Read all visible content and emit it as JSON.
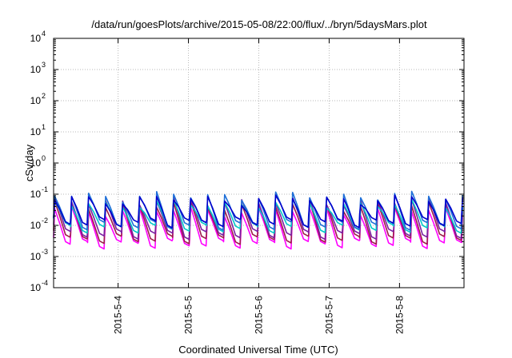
{
  "chart_data": {
    "type": "line",
    "title": "/data/run/goesPlots/archive/2015-05-08/22:00/flux/../bryn/5daysMars.plot",
    "xlabel": "Coordinated Universal Time (UTC)",
    "ylabel": "cSv/day",
    "yscale": "log",
    "ylim": [
      0.0001,
      10000
    ],
    "xlim": [
      "2015-05-03 02:00",
      "2015-05-08 22:00"
    ],
    "x_ticks": [
      "2015-5-4",
      "2015-5-5",
      "2015-5-6",
      "2015-5-7",
      "2015-5-8"
    ],
    "y_ticks": [
      {
        "base": "10",
        "exp": "-4"
      },
      {
        "base": "10",
        "exp": "-3"
      },
      {
        "base": "10",
        "exp": "-2"
      },
      {
        "base": "10",
        "exp": "-1"
      },
      {
        "base": "10",
        "exp": "0"
      },
      {
        "base": "10",
        "exp": "1"
      },
      {
        "base": "10",
        "exp": "2"
      },
      {
        "base": "10",
        "exp": "3"
      },
      {
        "base": "10",
        "exp": "4"
      }
    ],
    "grid": true,
    "pattern": {
      "period_hours": 5.8,
      "start": "2015-05-03 02:00",
      "end": "2015-05-08 22:00"
    },
    "series": [
      {
        "color": "#ff00ff",
        "peak": 0.03,
        "trough": 0.0025
      },
      {
        "color": "#9e1c4a",
        "peak": 0.045,
        "trough": 0.0035
      },
      {
        "color": "#7b1fa2",
        "peak": 0.06,
        "trough": 0.005
      },
      {
        "color": "#00c8c8",
        "peak": 0.05,
        "trough": 0.008
      },
      {
        "color": "#1e6fd8",
        "peak": 0.09,
        "trough": 0.01
      },
      {
        "color": "#0000cc",
        "peak": 0.07,
        "trough": 0.012
      }
    ]
  }
}
